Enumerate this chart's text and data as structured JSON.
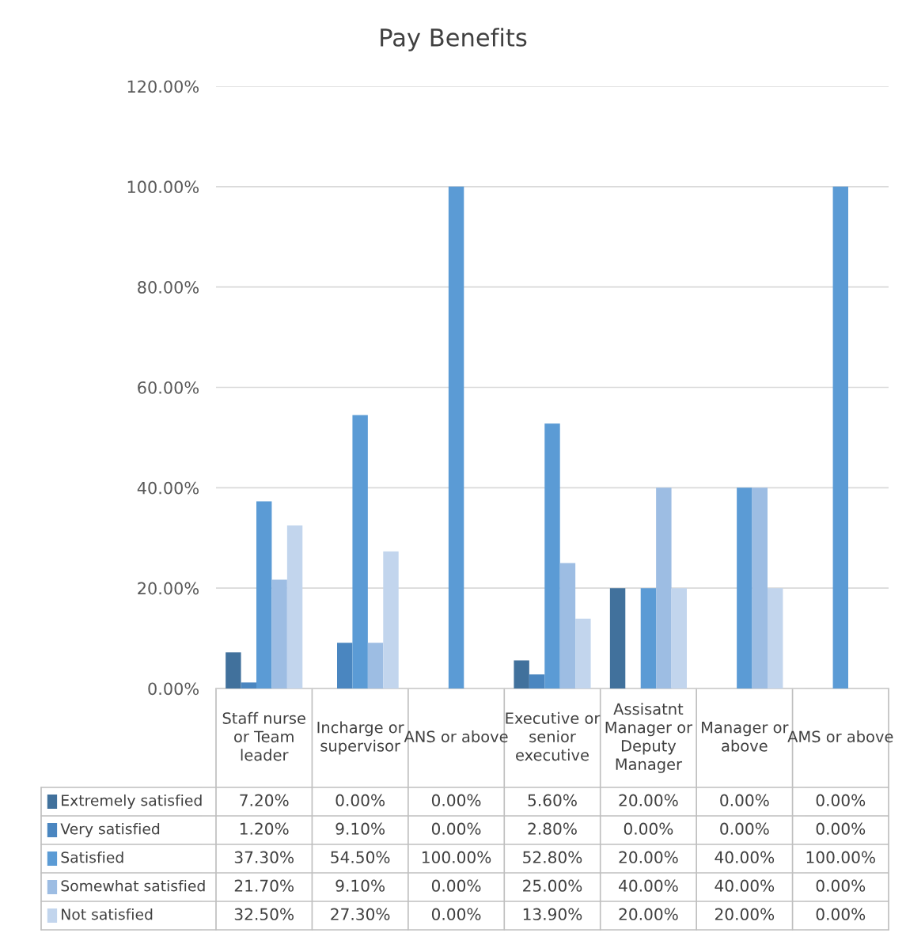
{
  "chart_data": {
    "type": "bar",
    "title": "Pay Benefits",
    "categories": [
      "Staff nurse or Team leader",
      "Incharge or supervisor",
      "ANS or above",
      "Executive or senior executive",
      "Assisatnt Manager or Deputy Manager",
      "Manager or above",
      "AMS or above"
    ],
    "series": [
      {
        "name": "Extremely satisfied",
        "color": "#41719c",
        "values": [
          7.2,
          0,
          0,
          5.6,
          20,
          0,
          0
        ],
        "value_labels": [
          "7.20%",
          "0.00%",
          "0.00%",
          "5.60%",
          "20.00%",
          "0.00%",
          "0.00%"
        ]
      },
      {
        "name": "Very satisfied",
        "color": "#4a86c0",
        "values": [
          1.2,
          9.1,
          0,
          2.8,
          0,
          0,
          0
        ],
        "value_labels": [
          "1.20%",
          "9.10%",
          "0.00%",
          "2.80%",
          "0.00%",
          "0.00%",
          "0.00%"
        ]
      },
      {
        "name": "Satisfied",
        "color": "#5b9bd5",
        "values": [
          37.3,
          54.5,
          100,
          52.8,
          20,
          40,
          100
        ],
        "value_labels": [
          "37.30%",
          "54.50%",
          "100.00%",
          "52.80%",
          "20.00%",
          "40.00%",
          "100.00%"
        ]
      },
      {
        "name": "Somewhat satisfied",
        "color": "#9dbde3",
        "values": [
          21.7,
          9.1,
          0,
          25,
          40,
          40,
          0
        ],
        "value_labels": [
          "21.70%",
          "9.10%",
          "0.00%",
          "25.00%",
          "40.00%",
          "40.00%",
          "0.00%"
        ]
      },
      {
        "name": "Not satisfied",
        "color": "#c2d5ed",
        "values": [
          32.5,
          27.3,
          0,
          13.9,
          20,
          20,
          0
        ],
        "value_labels": [
          "32.50%",
          "27.30%",
          "0.00%",
          "13.90%",
          "20.00%",
          "20.00%",
          "0.00%"
        ]
      }
    ],
    "ylim": [
      0,
      120
    ],
    "yticks": [
      {
        "value": 0,
        "label": "0.00%"
      },
      {
        "value": 20,
        "label": "20.00%"
      },
      {
        "value": 40,
        "label": "40.00%"
      },
      {
        "value": 60,
        "label": "60.00%"
      },
      {
        "value": 80,
        "label": "80.00%"
      },
      {
        "value": 100,
        "label": "100.00%"
      },
      {
        "value": 120,
        "label": "120.00%"
      }
    ],
    "grid": "y",
    "legend": "bottom left"
  }
}
